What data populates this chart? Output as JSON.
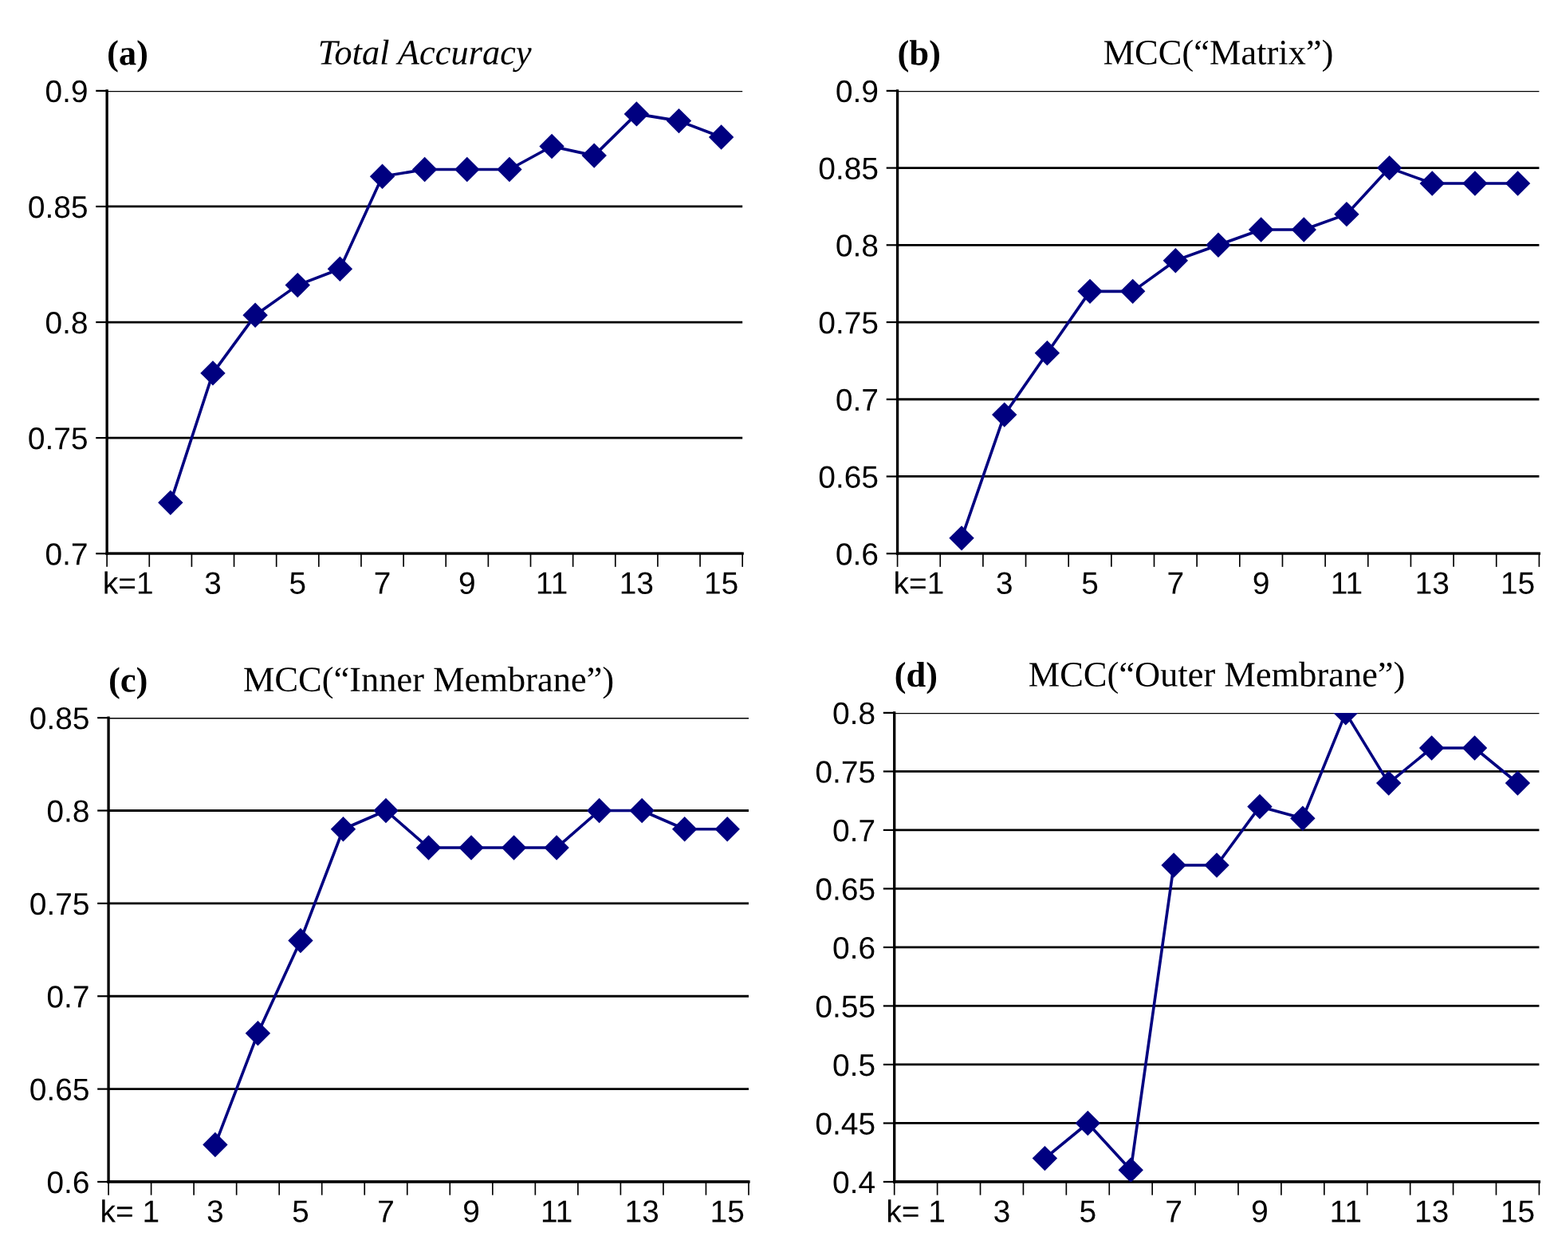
{
  "chart_data": [
    {
      "type": "line",
      "title": "Total Accuracy",
      "annotations": [
        "(a)"
      ],
      "categories": [
        "k=1",
        null,
        "3",
        null,
        "5",
        null,
        "7",
        null,
        "9",
        null,
        "11",
        null,
        "13",
        null,
        "15"
      ],
      "series": [
        {
          "color": "#000080",
          "values": [
            null,
            0.722,
            0.778,
            0.803,
            0.816,
            0.823,
            0.863,
            0.866,
            0.866,
            0.866,
            0.876,
            0.872,
            0.89,
            0.887,
            0.88
          ]
        }
      ],
      "ylim": [
        0.7,
        0.9
      ],
      "yticks": [
        0.7,
        0.75,
        0.8,
        0.85,
        0.9
      ],
      "grid": "y",
      "marker": "diamond",
      "line_style": "solid",
      "legend": false
    },
    {
      "type": "line",
      "title": "MCC(“Matrix”)",
      "annotations": [
        "(b)"
      ],
      "categories": [
        "k=1",
        null,
        "3",
        null,
        "5",
        null,
        "7",
        null,
        "9",
        null,
        "11",
        null,
        "13",
        null,
        "15"
      ],
      "series": [
        {
          "color": "#000080",
          "values": [
            null,
            0.61,
            0.69,
            0.73,
            0.77,
            0.77,
            0.79,
            0.8,
            0.81,
            0.81,
            0.82,
            0.85,
            0.84,
            0.84,
            0.84
          ]
        }
      ],
      "ylim": [
        0.6,
        0.9
      ],
      "yticks": [
        0.6,
        0.65,
        0.7,
        0.75,
        0.8,
        0.85,
        0.9
      ],
      "grid": "y",
      "marker": "diamond",
      "line_style": "solid",
      "legend": false
    },
    {
      "type": "line",
      "title": "MCC(“Inner Membrane”)",
      "annotations": [
        "(c)"
      ],
      "categories": [
        "k= 1",
        null,
        "3",
        null,
        "5",
        null,
        "7",
        null,
        "9",
        null,
        "11",
        null,
        "13",
        null,
        "15"
      ],
      "series": [
        {
          "color": "#000080",
          "values": [
            null,
            null,
            0.62,
            0.68,
            0.73,
            0.79,
            0.8,
            0.78,
            0.78,
            0.78,
            0.78,
            0.8,
            0.8,
            0.79,
            0.79
          ]
        }
      ],
      "ylim": [
        0.6,
        0.85
      ],
      "yticks": [
        0.6,
        0.65,
        0.7,
        0.75,
        0.8,
        0.85
      ],
      "grid": "y",
      "marker": "diamond",
      "line_style": "solid",
      "legend": false
    },
    {
      "type": "line",
      "title": "MCC(“Outer Membrane”)",
      "annotations": [
        "(d)"
      ],
      "categories": [
        "k= 1",
        null,
        "3",
        null,
        "5",
        null,
        "7",
        null,
        "9",
        null,
        "11",
        null,
        "13",
        null,
        "15"
      ],
      "series": [
        {
          "color": "#000080",
          "values": [
            null,
            null,
            null,
            0.42,
            0.45,
            0.41,
            0.67,
            0.67,
            0.72,
            0.71,
            0.8,
            0.74,
            0.77,
            0.77,
            0.74
          ]
        }
      ],
      "ylim": [
        0.4,
        0.8
      ],
      "yticks": [
        0.4,
        0.45,
        0.5,
        0.55,
        0.6,
        0.65,
        0.7,
        0.75,
        0.8
      ],
      "grid": "y",
      "marker": "diamond",
      "line_style": "solid",
      "legend": false
    }
  ]
}
